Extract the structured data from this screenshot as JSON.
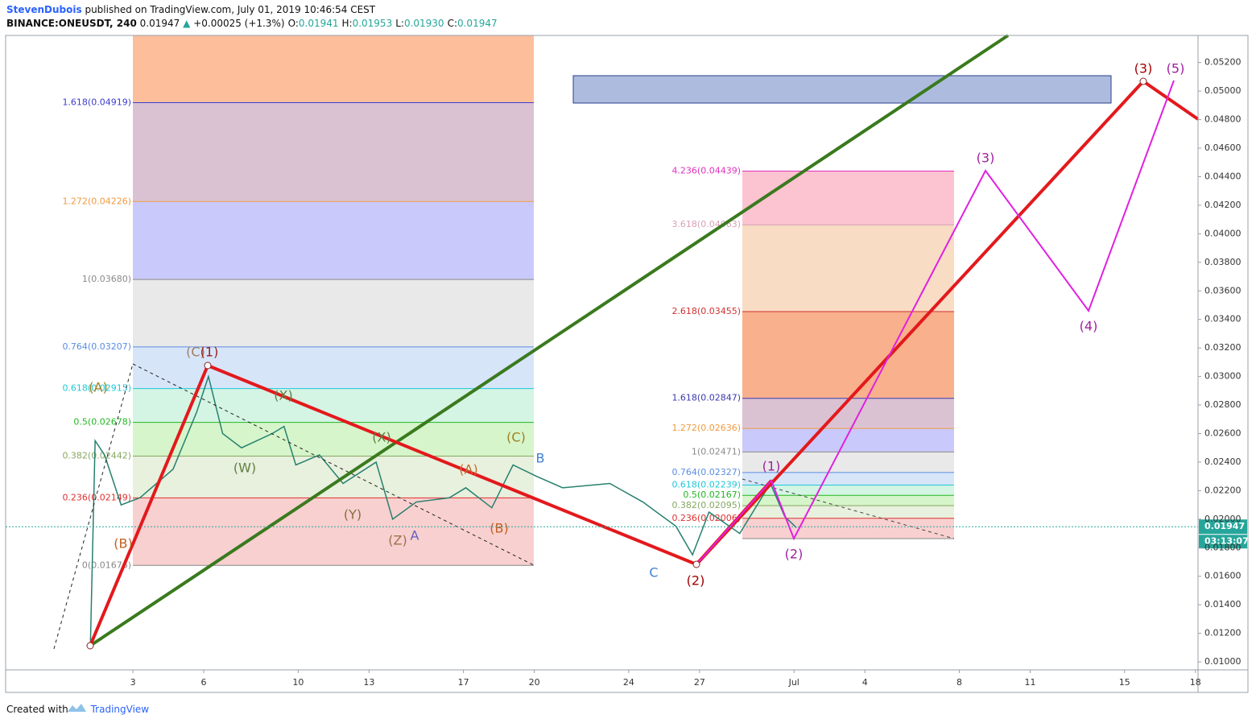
{
  "header": {
    "author": "StevenDubois",
    "published": "published on TradingView.com, July 01, 2019 10:46:54 CEST",
    "symbol": "BINANCE:ONEUSDT, 240",
    "last": "0.01947",
    "arrow": "▲",
    "change": "+0.00025 (+1.3%)",
    "ohlc": [
      {
        "key": "O:",
        "value": "0.01941"
      },
      {
        "key": "H:",
        "value": "0.01953"
      },
      {
        "key": "L:",
        "value": "0.01930"
      },
      {
        "key": "C:",
        "value": "0.01947"
      }
    ]
  },
  "footer": {
    "created": "Created with",
    "brand": "TradingView"
  },
  "chart_data": {
    "type": "line",
    "color": "#26806e",
    "x": [
      1.2,
      1.4,
      1.8,
      2.5,
      3.3,
      4.7,
      5.7,
      6.2,
      6.8,
      7.6,
      8.9,
      9.4,
      9.9,
      10.9,
      11.9,
      13.3,
      14.0,
      15.0,
      16.4,
      17.1,
      18.2,
      19.1,
      20.1,
      21.2,
      23.2,
      24.6,
      26.0,
      26.7,
      27.4,
      28.7,
      30.0,
      30.6,
      31.1
    ],
    "values": [
      0.0112,
      0.0255,
      0.0245,
      0.021,
      0.0215,
      0.0235,
      0.0275,
      0.03,
      0.026,
      0.025,
      0.026,
      0.0265,
      0.0238,
      0.0245,
      0.0225,
      0.024,
      0.02,
      0.0212,
      0.0215,
      0.0222,
      0.0208,
      0.0238,
      0.023,
      0.0222,
      0.0225,
      0.0212,
      0.0195,
      0.0175,
      0.0205,
      0.019,
      0.0225,
      0.0202,
      0.0194
    ],
    "xlim": [
      -2.39,
      48.11
    ],
    "ylim": [
      0.00944,
      0.0539
    ],
    "xticks": [
      3,
      6,
      10,
      13,
      17,
      20,
      24,
      27,
      {
        "value": 31,
        "label": "Jul"
      },
      {
        "value": 34,
        "label": "4"
      },
      {
        "value": 38,
        "label": "8"
      },
      {
        "value": 41,
        "label": "11"
      },
      {
        "value": 45,
        "label": "15"
      },
      {
        "value": 48,
        "label": "18"
      }
    ],
    "yticks": [
      {
        "value": 0.01,
        "label": "0.01000"
      },
      {
        "value": 0.012,
        "label": "0.01200"
      },
      {
        "value": 0.014,
        "label": "0.01400"
      },
      {
        "value": 0.016,
        "label": "0.01600"
      },
      {
        "value": 0.018,
        "label": "0.01800"
      },
      {
        "value": 0.02,
        "label": "0.02000"
      },
      {
        "value": 0.022,
        "label": "0.02200"
      },
      {
        "value": 0.024,
        "label": "0.02400"
      },
      {
        "value": 0.026,
        "label": "0.02600"
      },
      {
        "value": 0.028,
        "label": "0.02800"
      },
      {
        "value": 0.03,
        "label": "0.03000"
      },
      {
        "value": 0.032,
        "label": "0.03200"
      },
      {
        "value": 0.034,
        "label": "0.03400"
      },
      {
        "value": 0.036,
        "label": "0.03600"
      },
      {
        "value": 0.038,
        "label": "0.03800"
      },
      {
        "value": 0.04,
        "label": "0.04000"
      },
      {
        "value": 0.042,
        "label": "0.04200"
      },
      {
        "value": 0.044,
        "label": "0.04400"
      },
      {
        "value": 0.046,
        "label": "0.04600"
      },
      {
        "value": 0.048,
        "label": "0.04800"
      },
      {
        "value": 0.05,
        "label": "0.05000"
      },
      {
        "value": 0.052,
        "label": "0.05200"
      }
    ],
    "last_price": 0.01947,
    "countdown": "03:13:07",
    "last_color": "#26a69a",
    "fibs": [
      {
        "fill_above": "#fdbe9c",
        "levels": [
          {
            "label": "1.618(0.04919)",
            "value": 0.04919,
            "color": "#3c3cd0",
            "fill": "#dbc2d2"
          },
          {
            "label": "1.272(0.04226)",
            "value": 0.04226,
            "color": "#f09a40",
            "fill": "#c9c9fb"
          },
          {
            "label": "1(0.03680)",
            "value": 0.0368,
            "color": "#8a8a8a",
            "fill": "#e9e9e9"
          },
          {
            "label": "0.764(0.03207)",
            "value": 0.03207,
            "color": "#5a8de0",
            "fill": "#d7e5f9"
          },
          {
            "label": "0.618(0.02915)",
            "value": 0.02915,
            "color": "#1ec8d8",
            "fill": "#d4f4e4"
          },
          {
            "label": "0.5(0.02678)",
            "value": 0.02678,
            "color": "#22b822",
            "fill": "#d6f5cb"
          },
          {
            "label": "0.382(0.02442)",
            "value": 0.02442,
            "color": "#86a860",
            "fill": "#e8f0de"
          },
          {
            "label": "0.236(0.02149)",
            "value": 0.02149,
            "color": "#e03030",
            "fill": "#f8d0d0"
          },
          {
            "label": "0(0.01676)",
            "value": 0.01676,
            "color": "#888888"
          }
        ]
      },
      {
        "low": 0.01864,
        "levels": [
          {
            "label": "4.236(0.04439)",
            "value": 0.04439,
            "color": "#e030c0",
            "fill": "#fcc3d1"
          },
          {
            "label": "3.618(0.04063)",
            "value": 0.04063,
            "color": "#d8a0b8",
            "fill": "#f9dcc4"
          },
          {
            "label": "2.618(0.03455)",
            "value": 0.03455,
            "color": "#d03030",
            "fill": "#f9b08c"
          },
          {
            "label": "1.618(0.02847)",
            "value": 0.02847,
            "color": "#3a3ab0",
            "fill": "#dbc2d2"
          },
          {
            "label": "1.272(0.02636)",
            "value": 0.02636,
            "color": "#f09a40",
            "fill": "#c9c9fb"
          },
          {
            "label": "1(0.02471)",
            "value": 0.02471,
            "color": "#8a8a8a",
            "fill": "#e9e9e9"
          },
          {
            "label": "0.764(0.02327)",
            "value": 0.02327,
            "color": "#5a8de0",
            "fill": "#d7e5f9"
          },
          {
            "label": "0.618(0.02239)",
            "value": 0.02239,
            "color": "#1ec8d8",
            "fill": "#d4f4e4"
          },
          {
            "label": "0.5(0.02167)",
            "value": 0.02167,
            "color": "#22b822",
            "fill": "#d6f5cb"
          },
          {
            "label": "0.382(0.02095)",
            "value": 0.02095,
            "color": "#86a860",
            "fill": "#e8f0de"
          },
          {
            "label": "0.236(0.02006)",
            "value": 0.02006,
            "color": "#e03030",
            "fill": "#f8d0d0"
          }
        ]
      }
    ]
  },
  "waves": [
    "(A)",
    "(B)",
    "(C)",
    "(1)",
    "(W)",
    "(X)",
    "(X)",
    "(Y)",
    "(Z)",
    "A",
    "(A)",
    "(B)",
    "(C)",
    "B",
    "C",
    "(2)",
    "(1)",
    "(2)",
    "(3)",
    "(4)",
    "(3)",
    "(5)"
  ]
}
